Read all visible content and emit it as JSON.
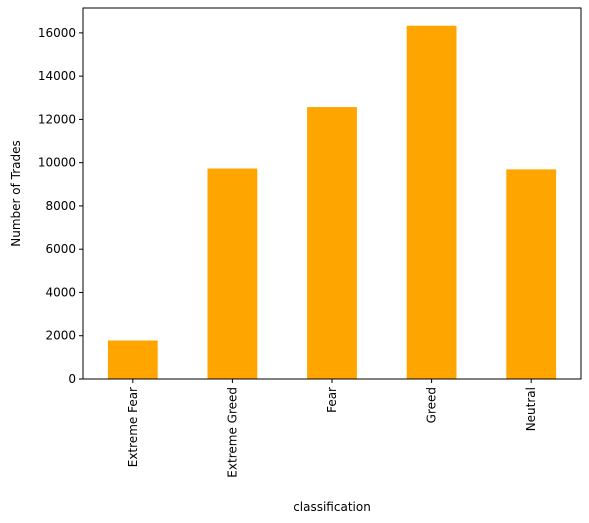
{
  "chart_data": {
    "type": "bar",
    "categories": [
      "Extreme Fear",
      "Extreme Greed",
      "Fear",
      "Greed",
      "Neutral"
    ],
    "values": [
      1780,
      9730,
      12570,
      16330,
      9690
    ],
    "xlabel": "classification",
    "ylabel": "Number of Trades",
    "ylim": [
      0,
      17150
    ],
    "yticks": [
      0,
      2000,
      4000,
      6000,
      8000,
      10000,
      12000,
      14000,
      16000
    ],
    "bar_color": "#FFA500",
    "grid": false,
    "legend": "none"
  }
}
